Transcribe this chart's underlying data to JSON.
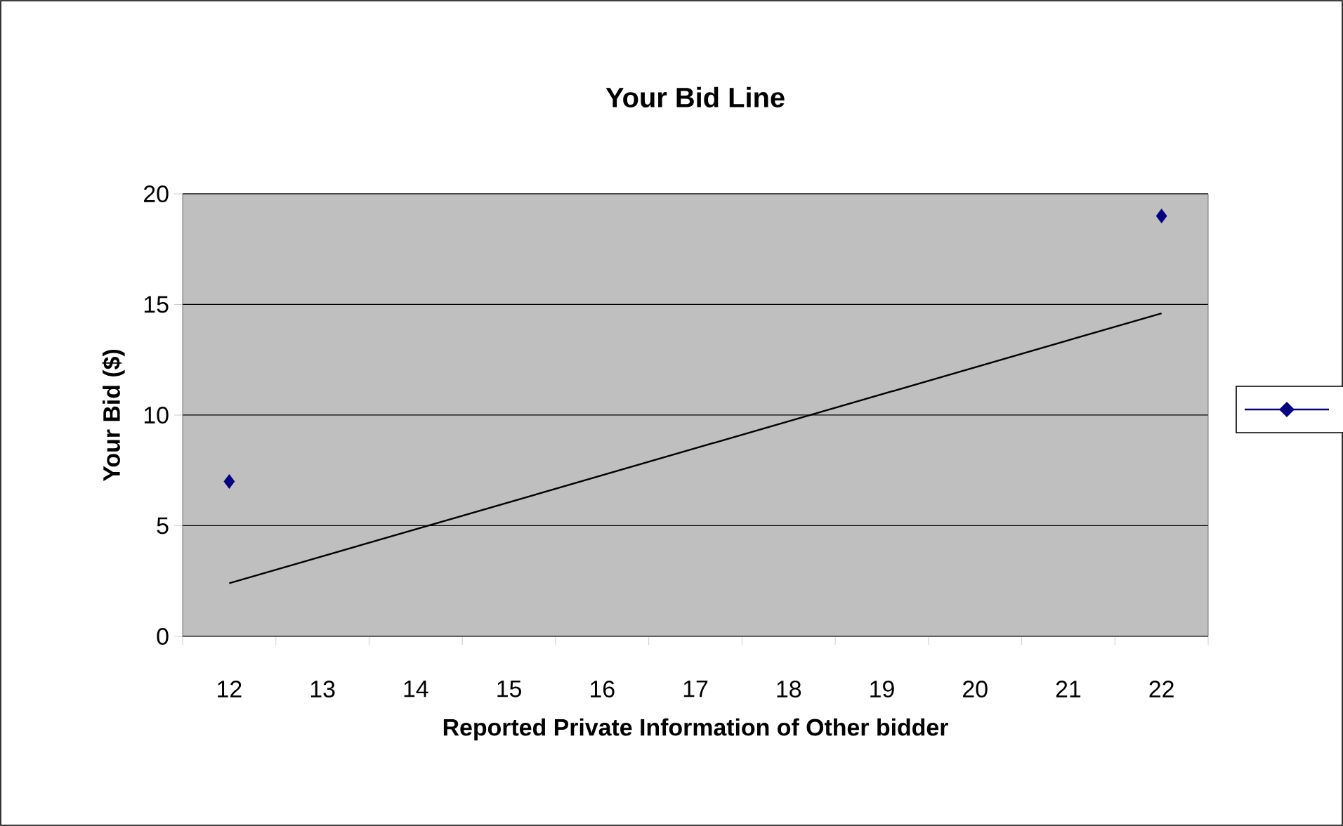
{
  "chart_data": {
    "type": "scatter",
    "title": "Your Bid Line",
    "xlabel": "Reported Private Information of Other bidder",
    "ylabel": "Your Bid ($)",
    "categories": [
      "12",
      "13",
      "14",
      "15",
      "16",
      "17",
      "18",
      "19",
      "20",
      "21",
      "22"
    ],
    "series": [
      {
        "color": "#000080",
        "marker": "diamond",
        "values": [
          7,
          null,
          null,
          null,
          null,
          null,
          null,
          null,
          null,
          null,
          19
        ]
      },
      {
        "type": "line",
        "color": "#000000",
        "marker": "none",
        "values": [
          2.4,
          null,
          null,
          null,
          null,
          null,
          null,
          null,
          null,
          null,
          14.6
        ]
      }
    ],
    "ylim": [
      0,
      20
    ],
    "yticks": [
      0,
      5,
      10,
      15,
      20
    ],
    "grid": "y"
  }
}
